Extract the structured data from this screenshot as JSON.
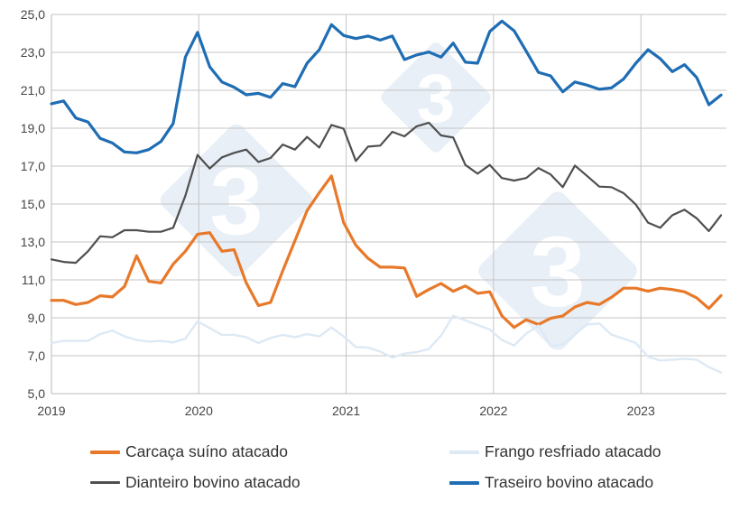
{
  "chart_data": {
    "type": "line",
    "title": "",
    "xlabel": "",
    "ylabel": "",
    "ylim": [
      5,
      25
    ],
    "yticks": [
      "5,0",
      "7,0",
      "9,0",
      "11,0",
      "13,0",
      "15,0",
      "17,0",
      "19,0",
      "21,0",
      "23,0",
      "25,0"
    ],
    "ytick_values": [
      5,
      7,
      9,
      11,
      13,
      15,
      17,
      19,
      21,
      23,
      25
    ],
    "xticks": [
      "2019",
      "2020",
      "2021",
      "2022",
      "2023"
    ],
    "x_start": "2019-01",
    "x_frequency": "monthly",
    "x_end": "2023-08",
    "grid": true,
    "legend_placement": "bottom",
    "watermark": "3",
    "series": [
      {
        "name": "Carcaça suíno atacado",
        "color": "#e8792a",
        "width": 3.2,
        "values": [
          9.92,
          9.92,
          9.7,
          9.81,
          10.16,
          10.1,
          10.65,
          12.27,
          10.92,
          10.84,
          11.83,
          12.51,
          13.41,
          13.49,
          12.51,
          12.59,
          10.84,
          9.65,
          9.81,
          11.48,
          13.06,
          14.65,
          15.6,
          16.48,
          14.02,
          12.83,
          12.14,
          11.67,
          11.67,
          11.63,
          10.13,
          10.49,
          10.81,
          10.4,
          10.68,
          10.29,
          10.37,
          9.1,
          8.49,
          8.9,
          8.65,
          8.97,
          9.1,
          9.57,
          9.81,
          9.7,
          10.08,
          10.56,
          10.56,
          10.4,
          10.56,
          10.49,
          10.37,
          10.05,
          9.49,
          10.17
        ]
      },
      {
        "name": "Frango resfriado atacado",
        "color": "#dde9f5",
        "width": 2.4,
        "values": [
          7.67,
          7.78,
          7.78,
          7.78,
          8.14,
          8.33,
          8.02,
          7.83,
          7.75,
          7.78,
          7.7,
          7.9,
          8.81,
          8.46,
          8.1,
          8.1,
          7.98,
          7.67,
          7.94,
          8.1,
          7.98,
          8.14,
          8.02,
          8.49,
          8.02,
          7.46,
          7.43,
          7.22,
          6.9,
          7.11,
          7.19,
          7.35,
          8.06,
          9.1,
          8.86,
          8.62,
          8.38,
          7.83,
          7.54,
          8.17,
          8.59,
          7.51,
          7.59,
          8.14,
          8.65,
          8.7,
          8.11,
          7.9,
          7.67,
          6.95,
          6.75,
          6.79,
          6.84,
          6.79,
          6.4,
          6.11
        ]
      },
      {
        "name": "Dianteiro bovino atacado",
        "color": "#4f4f4f",
        "width": 2.2,
        "values": [
          12.08,
          11.95,
          11.9,
          12.51,
          13.3,
          13.25,
          13.62,
          13.62,
          13.54,
          13.54,
          13.75,
          15.44,
          17.59,
          16.87,
          17.46,
          17.7,
          17.87,
          17.22,
          17.43,
          18.14,
          17.87,
          18.54,
          17.98,
          19.17,
          18.97,
          17.27,
          18.03,
          18.08,
          18.81,
          18.57,
          19.1,
          19.29,
          18.62,
          18.51,
          17.06,
          16.6,
          17.06,
          16.37,
          16.24,
          16.37,
          16.9,
          16.56,
          15.89,
          17.03,
          16.48,
          15.92,
          15.89,
          15.57,
          14.97,
          14.02,
          13.75,
          14.41,
          14.7,
          14.25,
          13.57,
          14.41
        ]
      },
      {
        "name": "Traseiro bovino atacado",
        "color": "#1f6db3",
        "width": 3.2,
        "values": [
          20.29,
          20.44,
          19.54,
          19.33,
          18.46,
          18.22,
          17.75,
          17.7,
          17.87,
          18.3,
          19.25,
          22.75,
          24.05,
          22.24,
          21.44,
          21.16,
          20.76,
          20.84,
          20.63,
          21.35,
          21.19,
          22.43,
          23.14,
          24.46,
          23.89,
          23.73,
          23.86,
          23.65,
          23.86,
          22.62,
          22.86,
          23.02,
          22.75,
          23.49,
          22.48,
          22.43,
          24.1,
          24.65,
          24.14,
          23.06,
          21.95,
          21.76,
          20.92,
          21.44,
          21.27,
          21.05,
          21.13,
          21.6,
          22.43,
          23.14,
          22.67,
          21.98,
          22.35,
          21.67,
          20.24,
          20.75
        ]
      }
    ]
  },
  "legend": [
    {
      "label": "Carcaça suíno atacado",
      "color": "#e8792a"
    },
    {
      "label": "Frango resfriado atacado",
      "color": "#dde9f5"
    },
    {
      "label": "Dianteiro bovino atacado",
      "color": "#4f4f4f"
    },
    {
      "label": "Traseiro bovino atacado",
      "color": "#1f6db3"
    }
  ]
}
